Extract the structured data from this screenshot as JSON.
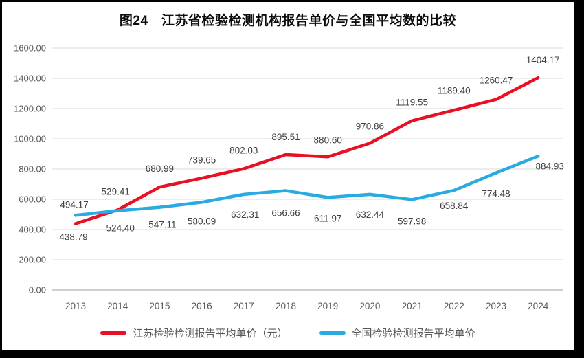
{
  "chart_data": {
    "type": "line",
    "title": "图24　江苏省检验检测机构报告单价与全国平均数的比较",
    "categories": [
      "2013",
      "2014",
      "2015",
      "2016",
      "2017",
      "2018",
      "2019",
      "2020",
      "2021",
      "2022",
      "2023",
      "2024"
    ],
    "series": [
      {
        "name": "江苏检验检测报告平均单价（元）",
        "color": "#e81123",
        "values": [
          438.79,
          529.41,
          680.99,
          739.65,
          802.03,
          895.51,
          880.6,
          970.86,
          1119.55,
          1189.4,
          1260.47,
          1404.17
        ],
        "label_offsets": [
          [
            -3,
            24
          ],
          [
            -3,
            -22
          ],
          [
            0,
            -22
          ],
          [
            0,
            -22
          ],
          [
            0,
            -22
          ],
          [
            0,
            -21
          ],
          [
            0,
            -20
          ],
          [
            0,
            -20
          ],
          [
            0,
            -22
          ],
          [
            0,
            -24
          ],
          [
            0,
            -23
          ],
          [
            7,
            -21
          ]
        ]
      },
      {
        "name": "全国检验检测报告平均单价",
        "color": "#29abe2",
        "values": [
          494.17,
          524.4,
          547.11,
          580.09,
          632.31,
          656.66,
          611.97,
          632.44,
          597.98,
          658.84,
          774.48,
          884.93
        ],
        "label_offsets": [
          [
            -2,
            -11
          ],
          [
            4,
            30
          ],
          [
            4,
            30
          ],
          [
            0,
            32
          ],
          [
            2,
            34
          ],
          [
            0,
            37
          ],
          [
            0,
            35
          ],
          [
            0,
            34
          ],
          [
            0,
            36
          ],
          [
            0,
            27
          ],
          [
            0,
            35
          ],
          [
            17,
            19
          ]
        ]
      }
    ],
    "xlabel": "",
    "ylabel": "",
    "ylim": [
      0,
      1600
    ],
    "ytick_step": 200,
    "ytick_labels": [
      "0.00",
      "200.00",
      "400.00",
      "600.00",
      "800.00",
      "1000.00",
      "1200.00",
      "1400.00",
      "1600.00"
    ],
    "grid": "horizontal",
    "legend_position": "bottom",
    "colors": {
      "grid_line": "#d9d9d9",
      "axis_line": "#bfbfbf",
      "axis_text": "#595959",
      "data_label_text": "#3f3f3f",
      "title_text": "#0d0d0d",
      "frame": "#000000",
      "background": "#ffffff"
    }
  }
}
